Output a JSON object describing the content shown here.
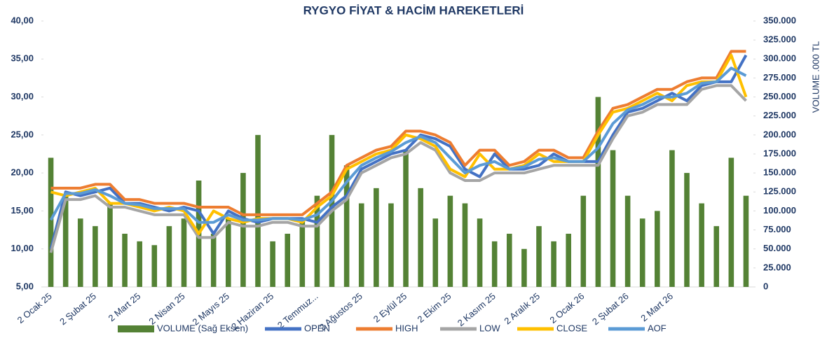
{
  "chart_data": {
    "type": "combo",
    "title": "RYGYO FİYAT & HACİM HAREKETLERİ",
    "y2_label": "VOLUME .000 TL",
    "categories": [
      "2 Ocak 25",
      null,
      null,
      "2 Şubat 25",
      null,
      null,
      "2 Mart 25",
      null,
      null,
      "2 Nisan 25",
      null,
      null,
      "2 Mayıs 25",
      null,
      null,
      "2 Haziran 25",
      null,
      null,
      "2 Temmuz...",
      null,
      null,
      "2 Ağustos 25",
      null,
      null,
      "2 Eylül 25",
      null,
      null,
      "2 Ekim 25",
      null,
      null,
      "2 Kasım 25",
      null,
      null,
      "2 Aralık 25",
      null,
      null,
      "2 Ocak 26",
      null,
      null,
      "2 Şubat 26",
      null,
      null,
      "2 Mart 26",
      null,
      null,
      null,
      null,
      null
    ],
    "ylim": [
      5,
      40
    ],
    "yticks": [
      {
        "value": 5,
        "label": "5,00"
      },
      {
        "value": 10,
        "label": "10,00"
      },
      {
        "value": 15,
        "label": "15,00"
      },
      {
        "value": 20,
        "label": "20,00"
      },
      {
        "value": 25,
        "label": "25,00"
      },
      {
        "value": 30,
        "label": "30,00"
      },
      {
        "value": 35,
        "label": "35,00"
      },
      {
        "value": 40,
        "label": "40,00"
      }
    ],
    "y2lim": [
      0,
      350000
    ],
    "y2ticks": [
      0,
      {
        "value": 25000,
        "label": "25.000"
      },
      {
        "value": 50000,
        "label": "50.000"
      },
      {
        "value": 75000,
        "label": "75.000"
      },
      {
        "value": 100000,
        "label": "100.000"
      },
      {
        "value": 125000,
        "label": "125.000"
      },
      {
        "value": 150000,
        "label": "150.000"
      },
      {
        "value": 175000,
        "label": "175.000"
      },
      {
        "value": 200000,
        "label": "200.000"
      },
      {
        "value": 225000,
        "label": "225.000"
      },
      {
        "value": 250000,
        "label": "250.000"
      },
      {
        "value": 275000,
        "label": "275.000"
      },
      {
        "value": 300000,
        "label": "300.000"
      },
      {
        "value": 325000,
        "label": "325.000"
      },
      {
        "value": 350000,
        "label": "350.000"
      }
    ],
    "legend": "bottom",
    "series": [
      {
        "name": "VOLUME (Sağ Eksen)",
        "type": "bar",
        "axis": "y2",
        "color": "#548235",
        "values": [
          170000,
          120000,
          90000,
          80000,
          110000,
          70000,
          60000,
          55000,
          80000,
          90000,
          140000,
          70000,
          90000,
          150000,
          200000,
          60000,
          70000,
          90000,
          120000,
          200000,
          160000,
          110000,
          130000,
          110000,
          180000,
          130000,
          90000,
          120000,
          110000,
          90000,
          60000,
          70000,
          50000,
          80000,
          60000,
          70000,
          120000,
          250000,
          180000,
          120000,
          90000,
          100000,
          180000,
          150000,
          110000,
          80000,
          170000,
          120000
        ]
      },
      {
        "name": "OPEN",
        "type": "line",
        "color": "#4472c4",
        "values": [
          10.0,
          17.5,
          17.0,
          17.5,
          18.0,
          16.0,
          16.0,
          15.5,
          15.0,
          15.5,
          15.0,
          12.0,
          15.0,
          14.0,
          13.5,
          14.0,
          14.0,
          14.0,
          13.5,
          15.5,
          17.0,
          20.5,
          21.5,
          22.5,
          23.0,
          25.0,
          24.5,
          23.5,
          20.5,
          19.5,
          22.5,
          20.5,
          20.5,
          21.0,
          22.5,
          21.5,
          21.5,
          21.5,
          25.0,
          28.0,
          28.5,
          29.5,
          30.5,
          29.5,
          31.5,
          32.0,
          32.0,
          35.5
        ]
      },
      {
        "name": "HIGH",
        "type": "line",
        "color": "#ed7d31",
        "values": [
          18.0,
          18.0,
          18.0,
          18.5,
          18.5,
          16.5,
          16.5,
          16.0,
          16.0,
          16.0,
          15.5,
          15.5,
          15.5,
          14.5,
          14.5,
          14.5,
          14.5,
          14.5,
          16.0,
          17.5,
          21.0,
          22.0,
          23.0,
          23.5,
          25.5,
          25.5,
          25.0,
          24.0,
          21.0,
          23.0,
          23.0,
          21.0,
          21.5,
          23.0,
          23.0,
          22.0,
          22.0,
          25.5,
          28.5,
          29.0,
          30.0,
          31.0,
          31.0,
          32.0,
          32.5,
          32.5,
          36.0,
          36.0
        ]
      },
      {
        "name": "LOW",
        "type": "line",
        "color": "#a5a5a5",
        "values": [
          9.5,
          16.5,
          16.5,
          17.0,
          15.5,
          15.5,
          15.0,
          14.5,
          14.5,
          14.5,
          11.5,
          11.5,
          13.5,
          13.0,
          13.0,
          13.5,
          13.5,
          13.0,
          13.0,
          15.0,
          16.5,
          20.0,
          21.0,
          22.0,
          22.5,
          24.0,
          23.0,
          20.0,
          19.0,
          19.0,
          20.0,
          20.0,
          20.0,
          20.5,
          21.0,
          21.0,
          21.0,
          21.0,
          24.5,
          27.5,
          28.0,
          29.0,
          29.0,
          29.0,
          31.0,
          31.5,
          31.5,
          29.5
        ]
      },
      {
        "name": "CLOSE",
        "type": "line",
        "color": "#ffc000",
        "values": [
          17.5,
          17.0,
          17.5,
          18.0,
          16.0,
          16.0,
          15.5,
          15.0,
          15.5,
          15.0,
          12.0,
          15.0,
          14.0,
          13.5,
          14.0,
          14.0,
          14.0,
          13.5,
          15.5,
          17.0,
          20.5,
          21.5,
          22.5,
          23.0,
          25.0,
          24.5,
          23.5,
          20.5,
          19.5,
          22.5,
          20.5,
          20.5,
          21.0,
          22.5,
          21.5,
          21.5,
          21.5,
          25.0,
          28.0,
          28.5,
          29.5,
          30.5,
          29.5,
          31.5,
          32.0,
          32.0,
          35.5,
          30.0
        ]
      },
      {
        "name": "AOF",
        "type": "line",
        "color": "#5b9bd5",
        "values": [
          13.8,
          17.3,
          17.3,
          17.8,
          17.0,
          16.0,
          15.8,
          15.3,
          15.3,
          15.3,
          13.5,
          13.5,
          14.5,
          13.8,
          13.8,
          14.0,
          14.0,
          13.8,
          14.5,
          16.3,
          18.8,
          21.0,
          22.0,
          22.8,
          24.0,
          24.8,
          24.0,
          22.0,
          20.0,
          21.0,
          21.5,
          20.5,
          20.8,
          21.8,
          22.0,
          21.5,
          21.5,
          23.3,
          26.5,
          28.3,
          29.0,
          30.0,
          30.0,
          30.5,
          31.8,
          32.0,
          33.8,
          32.8
        ]
      }
    ]
  }
}
